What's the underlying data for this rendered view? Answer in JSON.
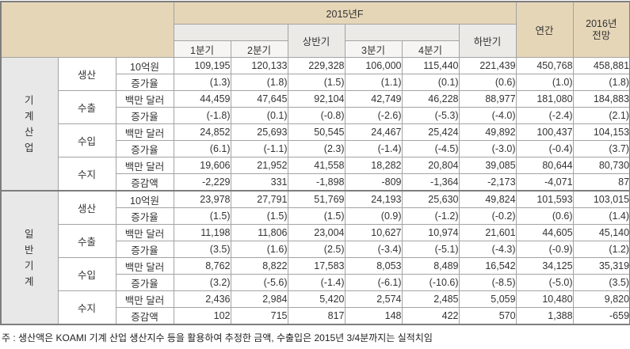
{
  "header": {
    "year_group": "2015년F",
    "half_first": "상반기",
    "half_second": "하반기",
    "quarters": [
      "1분기",
      "2분기",
      "3분기",
      "4분기"
    ],
    "annual": "연간",
    "forecast_line1": "2016년",
    "forecast_line2": "전망"
  },
  "table": {
    "groups": [
      {
        "label": "기계산업",
        "label_vertical": [
          "기",
          "계",
          "산",
          "업"
        ],
        "categories": [
          {
            "label": "생산",
            "rows": [
              {
                "unit": "10억원",
                "values": [
                  "109,195",
                  "120,133",
                  "229,328",
                  "106,000",
                  "115,440",
                  "221,439",
                  "450,768",
                  "458,881"
                ]
              },
              {
                "unit": "증가율",
                "values": [
                  "(1.3)",
                  "(1.8)",
                  "(1.5)",
                  "(1.1)",
                  "(0.1)",
                  "(0.6)",
                  "(1.0)",
                  "(1.8)"
                ]
              }
            ]
          },
          {
            "label": "수출",
            "rows": [
              {
                "unit": "백만 달러",
                "values": [
                  "44,459",
                  "47,645",
                  "92,104",
                  "42,749",
                  "46,228",
                  "88,977",
                  "181,080",
                  "184,883"
                ]
              },
              {
                "unit": "증가율",
                "values": [
                  "(-1.8)",
                  "(0.1)",
                  "(-0.8)",
                  "(-2.6)",
                  "(-5.3)",
                  "(-4.0)",
                  "(-2.4)",
                  "(2.1)"
                ]
              }
            ]
          },
          {
            "label": "수입",
            "rows": [
              {
                "unit": "백만 달러",
                "values": [
                  "24,852",
                  "25,693",
                  "50,545",
                  "24,467",
                  "25,424",
                  "49,892",
                  "100,437",
                  "104,153"
                ]
              },
              {
                "unit": "증가율",
                "values": [
                  "(6.1)",
                  "(-1.1)",
                  "(2.3)",
                  "(-1.4)",
                  "(-4.5)",
                  "(-3.0)",
                  "(-0.4)",
                  "(3.7)"
                ]
              }
            ]
          },
          {
            "label": "수지",
            "rows": [
              {
                "unit": "백만 달러",
                "values": [
                  "19,606",
                  "21,952",
                  "41,558",
                  "18,282",
                  "20,804",
                  "39,085",
                  "80,644",
                  "80,730"
                ]
              },
              {
                "unit": "증감액",
                "values": [
                  "-2,229",
                  "331",
                  "-1,898",
                  "-809",
                  "-1,364",
                  "-2,173",
                  "-4,071",
                  "87"
                ]
              }
            ]
          }
        ]
      },
      {
        "label": "일반기계",
        "label_vertical": [
          "일",
          "반",
          "기",
          "계"
        ],
        "categories": [
          {
            "label": "생산",
            "rows": [
              {
                "unit": "10억원",
                "values": [
                  "23,978",
                  "27,791",
                  "51,769",
                  "24,193",
                  "25,630",
                  "49,824",
                  "101,593",
                  "103,015"
                ]
              },
              {
                "unit": "증가율",
                "values": [
                  "(1.5)",
                  "(1.5)",
                  "(1.5)",
                  "(0.9)",
                  "(-1.2)",
                  "(-0.2)",
                  "(0.6)",
                  "(1.4)"
                ]
              }
            ]
          },
          {
            "label": "수출",
            "rows": [
              {
                "unit": "백만 달러",
                "values": [
                  "11,198",
                  "11,806",
                  "23,004",
                  "10,627",
                  "10,974",
                  "21,601",
                  "44,605",
                  "45,140"
                ]
              },
              {
                "unit": "증가율",
                "values": [
                  "(3.5)",
                  "(1.6)",
                  "(2.5)",
                  "(-3.4)",
                  "(-5.1)",
                  "(-4.3)",
                  "(-0.9)",
                  "(1.2)"
                ]
              }
            ]
          },
          {
            "label": "수입",
            "rows": [
              {
                "unit": "백만 달러",
                "values": [
                  "8,762",
                  "8,822",
                  "17,583",
                  "8,053",
                  "8,489",
                  "16,542",
                  "34,125",
                  "35,319"
                ]
              },
              {
                "unit": "증가율",
                "values": [
                  "(3.2)",
                  "(-5.6)",
                  "(-1.4)",
                  "(-6.1)",
                  "(-10.6)",
                  "(-8.5)",
                  "(-5.0)",
                  "(3.5)"
                ]
              }
            ]
          },
          {
            "label": "수지",
            "rows": [
              {
                "unit": "백만 달러",
                "values": [
                  "2,436",
                  "2,984",
                  "5,420",
                  "2,574",
                  "2,485",
                  "5,059",
                  "10,480",
                  "9,820"
                ]
              },
              {
                "unit": "증감액",
                "values": [
                  "102",
                  "715",
                  "817",
                  "148",
                  "422",
                  "570",
                  "1,388",
                  "-659"
                ]
              }
            ]
          }
        ]
      }
    ]
  },
  "footnote": "주 : 생산액은 KOAMI 기계 산업 생산지수 등을 활용하여 추정한 금액, 수출입은 2015년 3/4분까지는 실적치임",
  "colors": {
    "header_bg": "#e6d6b8",
    "subheader_bg": "#ebeae7",
    "quarter_bg": "#f6f5f3",
    "group_col_bg": "#e8e8e8",
    "border": "#a3a3a3",
    "strong_border": "#7e7e7e"
  }
}
